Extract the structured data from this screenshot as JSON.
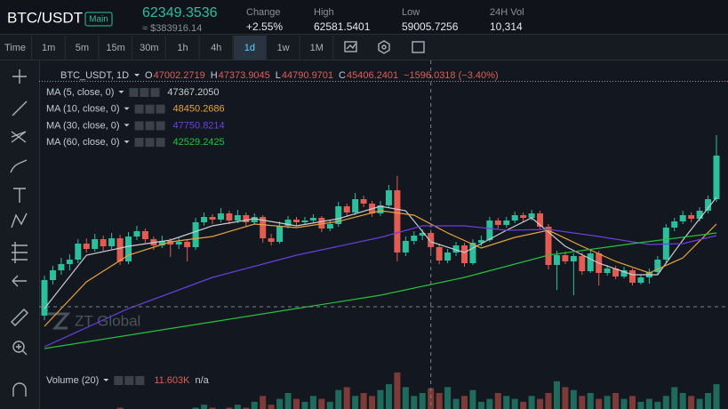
{
  "header": {
    "symbol": "BTC/USDT",
    "badge": "Main",
    "price": "62349.3536",
    "price_usd": "≈ $383916.14",
    "stats": [
      {
        "label": "Change",
        "value": "+2.55%"
      },
      {
        "label": "High",
        "value": "62581.5401"
      },
      {
        "label": "Low",
        "value": "59005.7256"
      },
      {
        "label": "24H Vol",
        "value": "10,314"
      }
    ]
  },
  "toolbar": {
    "intervals": [
      "Time",
      "1m",
      "5m",
      "15m",
      "30m",
      "1h",
      "4h",
      "1d",
      "1w",
      "1M"
    ],
    "active": "1d"
  },
  "chart": {
    "type": "candlestick",
    "symbol": "BTC_USDT, 1D",
    "ohlc": [
      {
        "label": "O",
        "value": "47002.2719"
      },
      {
        "label": "H",
        "value": "47373.9045"
      },
      {
        "label": "L",
        "value": "44790.9701"
      },
      {
        "label": "C",
        "value": "45406.2401"
      }
    ],
    "change": "−1596.0318 (−3.40%)",
    "up_color": "#2bbf9d",
    "down_color": "#e25c52",
    "ylim": [
      31800,
      65800
    ],
    "candles": [
      [
        37700,
        42200,
        37200,
        41700
      ],
      [
        41700,
        43300,
        41200,
        42800
      ],
      [
        42800,
        44200,
        42300,
        43500
      ],
      [
        43500,
        44600,
        42800,
        44000
      ],
      [
        44000,
        46300,
        43600,
        45800
      ],
      [
        45800,
        46400,
        44800,
        45200
      ],
      [
        45200,
        46900,
        44900,
        46300
      ],
      [
        46300,
        46700,
        45000,
        45500
      ],
      [
        45500,
        47000,
        45200,
        46400
      ],
      [
        46400,
        46800,
        43400,
        43800
      ],
      [
        43800,
        47100,
        43500,
        46600
      ],
      [
        46600,
        47800,
        46200,
        47200
      ],
      [
        47200,
        47500,
        45900,
        46300
      ],
      [
        46300,
        46600,
        45100,
        45600
      ],
      [
        45600,
        46700,
        45300,
        46100
      ],
      [
        46100,
        46400,
        44300,
        45700
      ],
      [
        45700,
        46500,
        45200,
        46000
      ],
      [
        46000,
        46300,
        43800,
        45400
      ],
      [
        45400,
        48700,
        45100,
        48200
      ],
      [
        48200,
        49300,
        47800,
        48800
      ],
      [
        48800,
        49100,
        48000,
        48500
      ],
      [
        48500,
        49800,
        48200,
        49200
      ],
      [
        49200,
        49500,
        48000,
        48400
      ],
      [
        48400,
        49600,
        48100,
        49000
      ],
      [
        49000,
        49300,
        47700,
        48200
      ],
      [
        48200,
        49200,
        47900,
        48800
      ],
      [
        48800,
        49000,
        45900,
        46400
      ],
      [
        46400,
        46900,
        45600,
        46000
      ],
      [
        46000,
        48300,
        45800,
        47800
      ],
      [
        47800,
        48900,
        47500,
        48500
      ],
      [
        48500,
        48800,
        47800,
        48200
      ],
      [
        48200,
        48800,
        47900,
        48400
      ],
      [
        48400,
        49100,
        48100,
        48700
      ],
      [
        48700,
        48900,
        47100,
        47500
      ],
      [
        47500,
        48400,
        47200,
        48000
      ],
      [
        48000,
        50500,
        47700,
        50000
      ],
      [
        50000,
        50300,
        48900,
        49300
      ],
      [
        49300,
        51500,
        49000,
        50800
      ],
      [
        50800,
        51200,
        49900,
        50300
      ],
      [
        50300,
        50600,
        48800,
        49200
      ],
      [
        49200,
        50600,
        48900,
        50100
      ],
      [
        50100,
        52400,
        49800,
        51800
      ],
      [
        51800,
        53400,
        43800,
        44800
      ],
      [
        44800,
        46600,
        44400,
        46100
      ],
      [
        46100,
        47200,
        45700,
        46700
      ],
      [
        46700,
        47400,
        46200,
        47000
      ],
      [
        47002.2719,
        47373.9045,
        44790.9701,
        45406.2401
      ],
      [
        45406.2401,
        45800,
        43500,
        43900
      ],
      [
        43900,
        45200,
        43600,
        44800
      ],
      [
        44800,
        46000,
        44400,
        45600
      ],
      [
        45600,
        45900,
        43200,
        43600
      ],
      [
        43600,
        46300,
        43400,
        45900
      ],
      [
        45900,
        46700,
        45500,
        46200
      ],
      [
        46200,
        48800,
        46000,
        48400
      ],
      [
        48400,
        48700,
        47500,
        47900
      ],
      [
        47900,
        48800,
        47600,
        48400
      ],
      [
        48400,
        49400,
        48100,
        49000
      ],
      [
        49000,
        49300,
        48300,
        48700
      ],
      [
        48700,
        49600,
        48400,
        49200
      ],
      [
        49200,
        49500,
        47400,
        47700
      ],
      [
        47700,
        48000,
        42900,
        43400
      ],
      [
        43400,
        45000,
        40600,
        44500
      ],
      [
        44500,
        44900,
        43500,
        43800
      ],
      [
        43800,
        44700,
        40000,
        44400
      ],
      [
        44400,
        44800,
        42300,
        42700
      ],
      [
        42700,
        45100,
        42500,
        44700
      ],
      [
        44700,
        45000,
        41100,
        42500
      ],
      [
        42500,
        43400,
        42200,
        43000
      ],
      [
        43000,
        43300,
        41800,
        42100
      ],
      [
        42100,
        43200,
        41900,
        42800
      ],
      [
        42800,
        43000,
        41100,
        41400
      ],
      [
        41400,
        42300,
        41200,
        42000
      ],
      [
        42000,
        43000,
        41300,
        42600
      ],
      [
        42600,
        44400,
        42300,
        44000
      ],
      [
        44000,
        48000,
        43700,
        47600
      ],
      [
        47600,
        48700,
        47200,
        48300
      ],
      [
        48300,
        49500,
        48000,
        49000
      ],
      [
        49000,
        49300,
        48200,
        48600
      ],
      [
        48600,
        49900,
        48300,
        49500
      ],
      [
        49500,
        51200,
        49200,
        50800
      ],
      [
        50800,
        58000,
        50500,
        55700
      ]
    ],
    "indicators": [
      {
        "name": "MA (5, close, 0)",
        "value": "47367.2050",
        "color": "#c9ccd1",
        "points": [
          [
            0,
            38500
          ],
          [
            5,
            44500
          ],
          [
            10,
            45500
          ],
          [
            15,
            46200
          ],
          [
            20,
            47800
          ],
          [
            25,
            48600
          ],
          [
            30,
            47800
          ],
          [
            35,
            48600
          ],
          [
            40,
            50000
          ],
          [
            43,
            49500
          ],
          [
            46,
            46000
          ],
          [
            50,
            44800
          ],
          [
            55,
            47300
          ],
          [
            58,
            48700
          ],
          [
            62,
            45500
          ],
          [
            66,
            43600
          ],
          [
            70,
            42300
          ],
          [
            73,
            42300
          ],
          [
            76,
            46200
          ],
          [
            80,
            51000
          ]
        ]
      },
      {
        "name": "MA (10, close, 0)",
        "value": "48450.2686",
        "color": "#e8a33c",
        "points": [
          [
            0,
            36500
          ],
          [
            5,
            41500
          ],
          [
            10,
            44500
          ],
          [
            15,
            46000
          ],
          [
            20,
            46600
          ],
          [
            25,
            48000
          ],
          [
            30,
            47600
          ],
          [
            35,
            48300
          ],
          [
            40,
            49500
          ],
          [
            44,
            49000
          ],
          [
            48,
            47000
          ],
          [
            52,
            45300
          ],
          [
            56,
            46500
          ],
          [
            60,
            47300
          ],
          [
            64,
            45500
          ],
          [
            68,
            43800
          ],
          [
            72,
            42500
          ],
          [
            76,
            44200
          ],
          [
            80,
            48000
          ]
        ]
      },
      {
        "name": "MA (30, close, 0)",
        "value": "47750.8214",
        "color": "#6a3fe0",
        "points": [
          [
            0,
            34200
          ],
          [
            10,
            38500
          ],
          [
            20,
            42000
          ],
          [
            30,
            44500
          ],
          [
            40,
            46500
          ],
          [
            45,
            47800
          ],
          [
            50,
            47800
          ],
          [
            55,
            47300
          ],
          [
            60,
            47400
          ],
          [
            66,
            46600
          ],
          [
            72,
            45700
          ],
          [
            76,
            45800
          ],
          [
            80,
            46700
          ]
        ]
      },
      {
        "name": "MA (60, close, 0)",
        "value": "42529.2425",
        "color": "#25c13d",
        "points": [
          [
            0,
            34000
          ],
          [
            10,
            35500
          ],
          [
            20,
            37000
          ],
          [
            30,
            38500
          ],
          [
            40,
            40000
          ],
          [
            50,
            42000
          ],
          [
            60,
            44500
          ],
          [
            70,
            45800
          ],
          [
            80,
            47000
          ]
        ]
      }
    ],
    "watermark": "ZT Global",
    "volume": {
      "name": "Volume (20)",
      "value": "11.603K",
      "extra": "n/a",
      "values": [
        3,
        2,
        3,
        4,
        3,
        2,
        3,
        4,
        3,
        5,
        4,
        3,
        2,
        3,
        3,
        2,
        3,
        4,
        5,
        6,
        5,
        4,
        5,
        6,
        5,
        7,
        9,
        6,
        8,
        10,
        8,
        7,
        9,
        8,
        7,
        11,
        12,
        9,
        10,
        9,
        11,
        13,
        17,
        12,
        9,
        10,
        11.603,
        10,
        12,
        8,
        9,
        11,
        7,
        8,
        10,
        9,
        8,
        7,
        9,
        8,
        10,
        14,
        12,
        11,
        9,
        10,
        8,
        9,
        10,
        8,
        9,
        7,
        8,
        7,
        9,
        12,
        10,
        9,
        8,
        10,
        13
      ]
    },
    "crosshair_index": 46
  }
}
